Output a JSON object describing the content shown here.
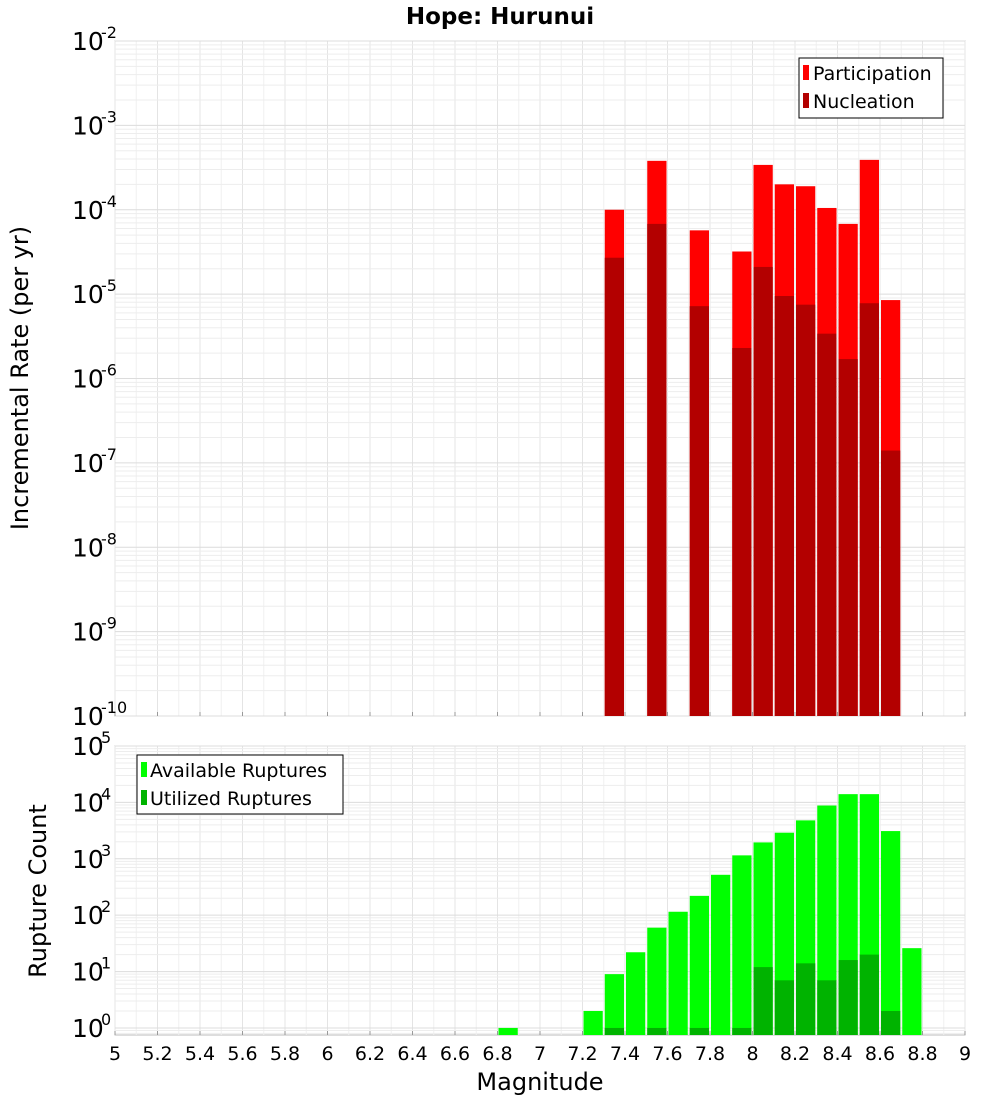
{
  "title": "Hope: Hurunui",
  "xlabel": "Magnitude",
  "x_ticks": [
    "5",
    "5.2",
    "5.4",
    "5.6",
    "5.8",
    "6",
    "6.2",
    "6.4",
    "6.6",
    "6.8",
    "7",
    "7.2",
    "7.4",
    "7.6",
    "7.8",
    "8",
    "8.2",
    "8.4",
    "8.6",
    "8.8",
    "9"
  ],
  "chart_data": [
    {
      "type": "bar",
      "log_y": true,
      "grid": true,
      "legend_position": "top-right",
      "ylabel": "Incremental Rate (per yr)",
      "xlim": [
        5,
        9
      ],
      "ylim": [
        1e-10,
        0.01
      ],
      "y_ticks": [
        {
          "base": "10",
          "exp": "-10"
        },
        {
          "base": "10",
          "exp": "-9"
        },
        {
          "base": "10",
          "exp": "-8"
        },
        {
          "base": "10",
          "exp": "-7"
        },
        {
          "base": "10",
          "exp": "-6"
        },
        {
          "base": "10",
          "exp": "-5"
        },
        {
          "base": "10",
          "exp": "-4"
        },
        {
          "base": "10",
          "exp": "-3"
        },
        {
          "base": "10",
          "exp": "-2"
        }
      ],
      "bin_width": 0.1,
      "series": [
        {
          "name": "Participation",
          "color": "#ff0000",
          "points": [
            [
              7.35,
              0.0001
            ],
            [
              7.55,
              0.00038
            ],
            [
              7.75,
              5.7e-05
            ],
            [
              7.95,
              3.2e-05
            ],
            [
              8.05,
              0.00034
            ],
            [
              8.15,
              0.0002
            ],
            [
              8.25,
              0.00019
            ],
            [
              8.35,
              0.000105
            ],
            [
              8.45,
              6.8e-05
            ],
            [
              8.55,
              0.00039
            ],
            [
              8.65,
              8.5e-06
            ]
          ]
        },
        {
          "name": "Nucleation",
          "color": "#b30000",
          "points": [
            [
              7.35,
              2.7e-05
            ],
            [
              7.55,
              6.8e-05
            ],
            [
              7.75,
              7.2e-06
            ],
            [
              7.95,
              2.3e-06
            ],
            [
              8.05,
              2.1e-05
            ],
            [
              8.15,
              9.5e-06
            ],
            [
              8.25,
              7.5e-06
            ],
            [
              8.35,
              3.4e-06
            ],
            [
              8.45,
              1.7e-06
            ],
            [
              8.55,
              7.8e-06
            ],
            [
              8.65,
              1.4e-07
            ]
          ]
        }
      ]
    },
    {
      "type": "bar",
      "log_y": true,
      "grid": true,
      "legend_position": "top-left",
      "ylabel": "Rupture Count",
      "xlim": [
        5,
        9
      ],
      "ylim": [
        0.75,
        100000.0
      ],
      "y_ticks": [
        {
          "base": "10",
          "exp": "0"
        },
        {
          "base": "10",
          "exp": "1"
        },
        {
          "base": "10",
          "exp": "2"
        },
        {
          "base": "10",
          "exp": "3"
        },
        {
          "base": "10",
          "exp": "4"
        },
        {
          "base": "10",
          "exp": "5"
        }
      ],
      "bin_width": 0.1,
      "series": [
        {
          "name": "Available Ruptures",
          "color": "#00ff00",
          "points": [
            [
              6.85,
              1
            ],
            [
              7.25,
              2
            ],
            [
              7.35,
              9
            ],
            [
              7.45,
              22
            ],
            [
              7.55,
              60
            ],
            [
              7.65,
              115
            ],
            [
              7.75,
              220
            ],
            [
              7.85,
              520
            ],
            [
              7.95,
              1150
            ],
            [
              8.05,
              1950
            ],
            [
              8.15,
              2900
            ],
            [
              8.25,
              4800
            ],
            [
              8.35,
              8800
            ],
            [
              8.45,
              14000
            ],
            [
              8.55,
              14000
            ],
            [
              8.65,
              3100
            ],
            [
              8.75,
              26
            ]
          ]
        },
        {
          "name": "Utilized Ruptures",
          "color": "#00b300",
          "points": [
            [
              7.35,
              1
            ],
            [
              7.55,
              1
            ],
            [
              7.75,
              1
            ],
            [
              7.95,
              1
            ],
            [
              8.05,
              12
            ],
            [
              8.15,
              7
            ],
            [
              8.25,
              14
            ],
            [
              8.35,
              7
            ],
            [
              8.45,
              16
            ],
            [
              8.55,
              20
            ],
            [
              8.65,
              2
            ]
          ]
        }
      ]
    }
  ]
}
